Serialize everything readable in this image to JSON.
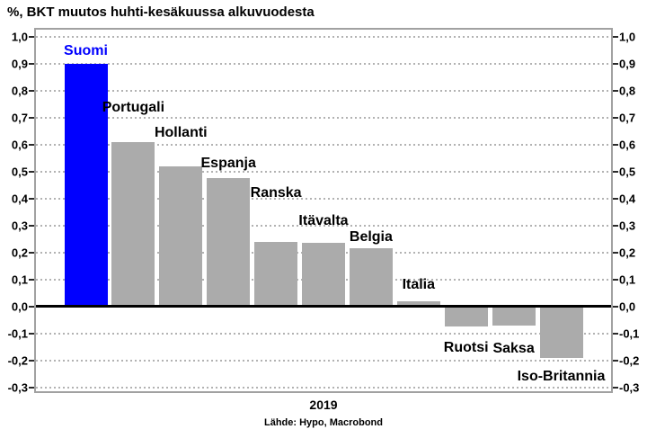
{
  "chart_data": {
    "type": "bar",
    "title": "%, BKT muutos huhti-kesäkuussa alkuvuodesta",
    "xlabel": "2019",
    "source": "Lähde: Hypo, Macrobond",
    "categories": [
      "Suomi",
      "Portugali",
      "Hollanti",
      "Espanja",
      "Ranska",
      "Itävalta",
      "Belgia",
      "Italia",
      "Ruotsi",
      "Saksa",
      "Iso-Britannia"
    ],
    "values": [
      0.9,
      0.61,
      0.52,
      0.475,
      0.24,
      0.235,
      0.215,
      0.02,
      -0.073,
      -0.072,
      -0.19
    ],
    "highlight_index": 0,
    "colors": {
      "highlight_bar": "#0000ff",
      "bar": "#ababab",
      "highlight_label": "#0000ff",
      "label": "#000000",
      "grid": "#b2b2b2",
      "zero_line": "#000000",
      "frame": "#a1a1a1"
    },
    "ylim": [
      -0.314,
      1.026
    ],
    "yticks": [
      1.0,
      0.9,
      0.8,
      0.7,
      0.6,
      0.5,
      0.4,
      0.3,
      0.2,
      0.1,
      0.0,
      -0.1,
      -0.2,
      -0.3
    ],
    "ytick_labels": [
      "1,0",
      "0,9",
      "0,8",
      "0,7",
      "0,6",
      "0,5",
      "0,4",
      "0,3",
      "0,2",
      "0,1",
      "0,0",
      "-0,1",
      "-0,2",
      "-0,3"
    ],
    "grid": "horizontal-dotted",
    "zero_line": true,
    "legend": "none",
    "label_placement": [
      {
        "side": "above",
        "gap": 5
      },
      {
        "side": "above",
        "gap": 29
      },
      {
        "side": "above",
        "gap": 28
      },
      {
        "side": "above",
        "gap": 7
      },
      {
        "side": "above",
        "gap": 45
      },
      {
        "side": "above",
        "gap": 15
      },
      {
        "side": "above",
        "gap": 3
      },
      {
        "side": "above",
        "gap": 9
      },
      {
        "side": "below",
        "gap": 15
      },
      {
        "side": "below",
        "gap": 17
      },
      {
        "side": "below",
        "gap": 12
      }
    ]
  }
}
